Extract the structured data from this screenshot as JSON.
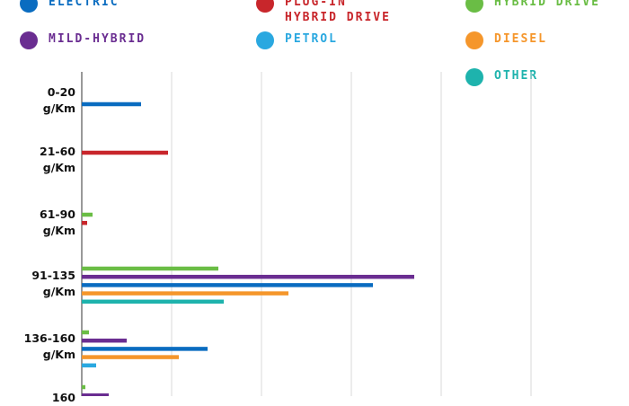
{
  "chart_data": {
    "type": "bar",
    "orientation": "horizontal",
    "title": "",
    "xlabel": "",
    "ylabel": "",
    "grid": true,
    "legend_position": "top",
    "categories": [
      "0-20\ng/Km",
      "21-60\ng/Km",
      "61-90\ng/Km",
      "91-135\ng/Km",
      "136-160\ng/Km",
      "160"
    ],
    "xlim": [
      0,
      5
    ],
    "series": [
      {
        "name": "ELECTRIC",
        "color": "#0a6cc0",
        "values": [
          0.33,
          0,
          0,
          1.62,
          0.7,
          0
        ]
      },
      {
        "name": "PLUG-IN\nHYBRID DRIVE",
        "color": "#c8262b",
        "values": [
          0,
          0.48,
          0.03,
          0,
          0,
          0
        ]
      },
      {
        "name": "HYBRID DRIVE",
        "color": "#6abd45",
        "values": [
          0,
          0,
          0.06,
          0.76,
          0.04,
          0.02
        ]
      },
      {
        "name": "MILD-HYBRID",
        "color": "#6a2d91",
        "values": [
          0,
          0,
          0,
          1.85,
          0.25,
          0.15
        ]
      },
      {
        "name": "PETROL",
        "color": "#2aa8e0",
        "values": [
          0,
          0,
          0,
          0,
          0.08,
          0
        ]
      },
      {
        "name": "DIESEL",
        "color": "#f5962b",
        "values": [
          0,
          0,
          0,
          1.15,
          0.54,
          0
        ]
      },
      {
        "name": "OTHER",
        "color": "#1eb3ad",
        "values": [
          0,
          0,
          0,
          0.79,
          0,
          0
        ]
      }
    ]
  }
}
